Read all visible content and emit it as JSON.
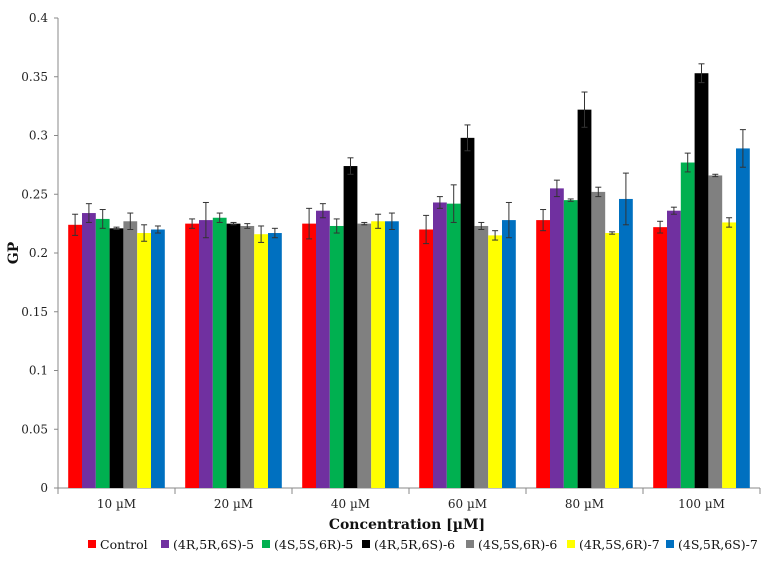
{
  "chart_data": {
    "type": "bar",
    "xlabel": "Concentration [µM]",
    "ylabel": "GP",
    "ylim": [
      0,
      0.4
    ],
    "yticks": [
      "0",
      "0.05",
      "0.1",
      "0.15",
      "0.2",
      "0.25",
      "0.3",
      "0.35",
      "0.4"
    ],
    "ytick_values": [
      0,
      0.05,
      0.1,
      0.15,
      0.2,
      0.25,
      0.3,
      0.35,
      0.4
    ],
    "grid": false,
    "legend_position": "bottom",
    "categories": [
      "10 µM",
      "20 µM",
      "40 µM",
      "60 µM",
      "80 µM",
      "100 µM"
    ],
    "series": [
      {
        "name": "Control",
        "color": "#ff0000",
        "values": [
          0.224,
          0.225,
          0.225,
          0.22,
          0.228,
          0.222
        ],
        "errors": [
          0.009,
          0.004,
          0.013,
          0.012,
          0.009,
          0.005
        ]
      },
      {
        "name": "(4R,5R,6S)-5",
        "color": "#7030a0",
        "values": [
          0.234,
          0.228,
          0.236,
          0.243,
          0.255,
          0.236
        ],
        "errors": [
          0.008,
          0.015,
          0.006,
          0.005,
          0.007,
          0.003
        ]
      },
      {
        "name": "(4S,5S,6R)-5",
        "color": "#00b050",
        "values": [
          0.229,
          0.23,
          0.223,
          0.242,
          0.245,
          0.277
        ],
        "errors": [
          0.008,
          0.004,
          0.006,
          0.016,
          0.001,
          0.008
        ]
      },
      {
        "name": "(4R,5R,6S)-6",
        "color": "#000000",
        "values": [
          0.221,
          0.225,
          0.274,
          0.298,
          0.322,
          0.353
        ],
        "errors": [
          0.001,
          0.001,
          0.007,
          0.011,
          0.015,
          0.008
        ]
      },
      {
        "name": "(4S,5S,6R)-6",
        "color": "#808080",
        "values": [
          0.227,
          0.223,
          0.225,
          0.223,
          0.252,
          0.266
        ],
        "errors": [
          0.007,
          0.002,
          0.001,
          0.003,
          0.004,
          0.001
        ]
      },
      {
        "name": "(4R,5S,6R)-7",
        "color": "#ffff00",
        "values": [
          0.217,
          0.216,
          0.227,
          0.215,
          0.217,
          0.226
        ],
        "errors": [
          0.007,
          0.007,
          0.006,
          0.004,
          0.001,
          0.004
        ]
      },
      {
        "name": "(4S,5R,6S)-7",
        "color": "#0070c0",
        "values": [
          0.22,
          0.217,
          0.227,
          0.228,
          0.246,
          0.289
        ],
        "errors": [
          0.003,
          0.004,
          0.007,
          0.015,
          0.022,
          0.016
        ]
      }
    ]
  }
}
